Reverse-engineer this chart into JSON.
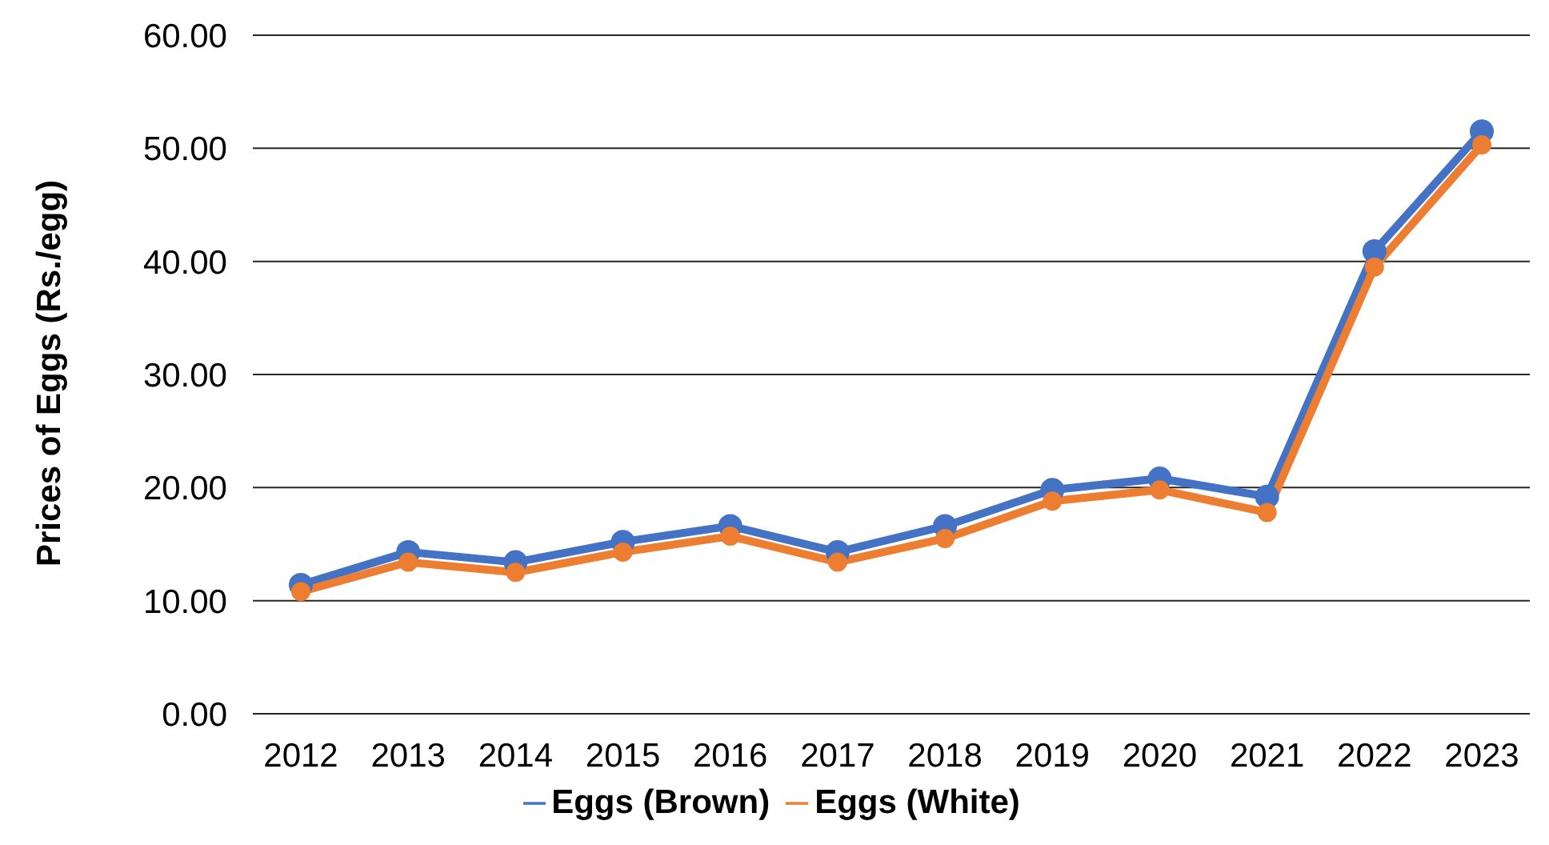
{
  "chart_data": {
    "type": "line",
    "ylabel": "Prices of Eggs (Rs./egg)",
    "categories": [
      "2012",
      "2013",
      "2014",
      "2015",
      "2016",
      "2017",
      "2018",
      "2019",
      "2020",
      "2021",
      "2022",
      "2023"
    ],
    "series": [
      {
        "name": "Eggs (Brown)",
        "color": "#4472c4",
        "values": [
          11.4,
          14.3,
          13.4,
          15.2,
          16.6,
          14.3,
          16.6,
          19.8,
          20.8,
          19.2,
          40.9,
          51.5
        ]
      },
      {
        "name": "Eggs (White)",
        "color": "#ed7d31",
        "values": [
          10.8,
          13.4,
          12.5,
          14.3,
          15.7,
          13.4,
          15.5,
          18.8,
          19.8,
          17.8,
          39.5,
          50.3
        ]
      }
    ],
    "ylim": [
      0,
      60
    ],
    "yticks": [
      {
        "value": 0,
        "label": "0.00"
      },
      {
        "value": 10,
        "label": "10.00"
      },
      {
        "value": 20,
        "label": "20.00"
      },
      {
        "value": 30,
        "label": "30.00"
      },
      {
        "value": 40,
        "label": "40.00"
      },
      {
        "value": 50,
        "label": "50.00"
      },
      {
        "value": 60,
        "label": "60.00"
      }
    ],
    "grid": "y",
    "legend": "bottom",
    "marker": "circle",
    "line_style": "solid"
  }
}
